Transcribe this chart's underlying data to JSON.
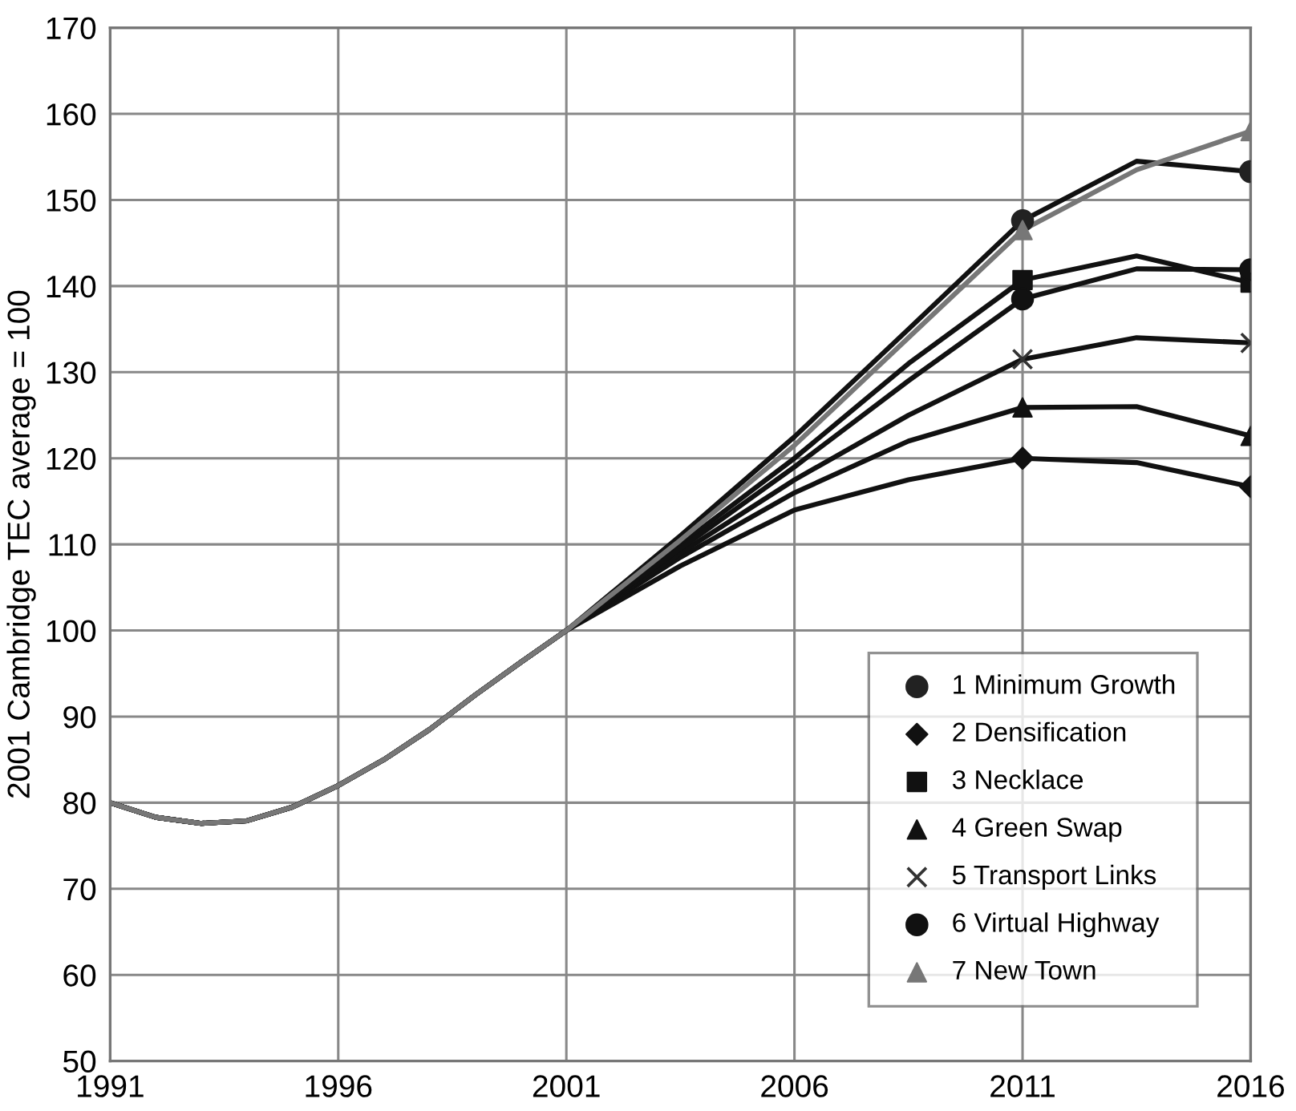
{
  "chart_data": {
    "type": "line",
    "ylabel": "2001 Cambridge TEC average = 100",
    "xlim": [
      1991,
      2016
    ],
    "xticks": [
      1991,
      1996,
      2001,
      2006,
      2011,
      2016
    ],
    "ylim": [
      50,
      170
    ],
    "yticks": [
      50,
      60,
      70,
      80,
      90,
      100,
      110,
      120,
      130,
      140,
      150,
      160,
      170
    ],
    "grid": true,
    "legend": "bottom right",
    "series": [
      {
        "color": "#111111",
        "x": [
          1991,
          1992,
          1993,
          1994,
          1995,
          1996,
          1997,
          1998,
          1999,
          2000,
          2001,
          2003.5,
          2006,
          2008.5,
          2011,
          2013.5,
          2016
        ],
        "values": [
          80,
          78.3,
          77.6,
          77.9,
          79.5,
          82,
          85,
          88.5,
          92.5,
          96.3,
          100,
          111,
          122.5,
          135,
          147.6,
          154.5,
          153.3
        ]
      },
      {
        "color": "#111111",
        "x": [
          1991,
          1992,
          1993,
          1994,
          1995,
          1996,
          1997,
          1998,
          1999,
          2000,
          2001,
          2003.5,
          2006,
          2008.5,
          2011,
          2013.5,
          2016
        ],
        "values": [
          80,
          78.3,
          77.6,
          77.9,
          79.5,
          82,
          85,
          88.5,
          92.5,
          96.3,
          100,
          107.5,
          114,
          117.5,
          120,
          119.5,
          116.7
        ]
      },
      {
        "color": "#111111",
        "x": [
          1991,
          1992,
          1993,
          1994,
          1995,
          1996,
          1997,
          1998,
          1999,
          2000,
          2001,
          2003.5,
          2006,
          2008.5,
          2011,
          2013.5,
          2016
        ],
        "values": [
          80,
          78.3,
          77.6,
          77.9,
          79.5,
          82,
          85,
          88.5,
          92.5,
          96.3,
          100,
          110,
          120,
          131,
          140.7,
          143.5,
          140.4
        ]
      },
      {
        "color": "#111111",
        "x": [
          1991,
          1992,
          1993,
          1994,
          1995,
          1996,
          1997,
          1998,
          1999,
          2000,
          2001,
          2003.5,
          2006,
          2008.5,
          2011,
          2013.5,
          2016
        ],
        "values": [
          80,
          78.3,
          77.6,
          77.9,
          79.5,
          82,
          85,
          88.5,
          92.5,
          96.3,
          100,
          108.5,
          116,
          122,
          125.9,
          126,
          122.6
        ]
      },
      {
        "color": "#111111",
        "x": [
          1991,
          1992,
          1993,
          1994,
          1995,
          1996,
          1997,
          1998,
          1999,
          2000,
          2001,
          2003.5,
          2006,
          2008.5,
          2011,
          2013.5,
          2016
        ],
        "values": [
          80,
          78.3,
          77.6,
          77.9,
          79.5,
          82,
          85,
          88.5,
          92.5,
          96.3,
          100,
          109,
          117.5,
          125,
          131.5,
          134,
          133.4
        ]
      },
      {
        "color": "#111111",
        "x": [
          1991,
          1992,
          1993,
          1994,
          1995,
          1996,
          1997,
          1998,
          1999,
          2000,
          2001,
          2003.5,
          2006,
          2008.5,
          2011,
          2013.5,
          2016
        ],
        "values": [
          80,
          78.3,
          77.6,
          77.9,
          79.5,
          82,
          85,
          88.5,
          92.5,
          96.3,
          100,
          109.5,
          119,
          129,
          138.5,
          142,
          141.9
        ]
      },
      {
        "color": "#777777",
        "x": [
          1991,
          1992,
          1993,
          1994,
          1995,
          1996,
          1997,
          1998,
          1999,
          2000,
          2001,
          2003.5,
          2006,
          2008.5,
          2011,
          2013.5,
          2016
        ],
        "values": [
          80,
          78.3,
          77.6,
          77.9,
          79.5,
          82,
          85,
          88.5,
          92.5,
          96.3,
          100,
          110.5,
          121.5,
          134,
          146.5,
          153.5,
          158
        ]
      },
      {
        "type": "scatter",
        "name": "1 Minimum Growth",
        "color": "#222222",
        "marker": "circle",
        "x": [
          2011,
          2016
        ],
        "values": [
          147.6,
          153.3
        ]
      },
      {
        "type": "scatter",
        "name": "2 Densification",
        "color": "#111111",
        "marker": "diamond",
        "x": [
          2011,
          2016
        ],
        "values": [
          120,
          116.7
        ]
      },
      {
        "type": "scatter",
        "name": "3 Necklace",
        "color": "#111111",
        "marker": "square",
        "x": [
          2011,
          2016
        ],
        "values": [
          140.7,
          140.4
        ]
      },
      {
        "type": "scatter",
        "name": "4 Green Swap",
        "color": "#111111",
        "marker": "triangle",
        "x": [
          2011,
          2016
        ],
        "values": [
          125.9,
          122.6
        ]
      },
      {
        "type": "scatter",
        "name": "5 Transport Links",
        "color": "#333333",
        "marker": "cross",
        "x": [
          2011,
          2016
        ],
        "values": [
          131.5,
          133.4
        ]
      },
      {
        "type": "scatter",
        "name": "6 Virtual Highway",
        "color": "#111111",
        "marker": "circle",
        "x": [
          2011,
          2016
        ],
        "values": [
          138.5,
          141.9
        ]
      },
      {
        "type": "scatter",
        "name": "7 New Town",
        "color": "#777777",
        "marker": "triangle",
        "x": [
          2011,
          2016
        ],
        "values": [
          146.5,
          158
        ]
      }
    ]
  }
}
